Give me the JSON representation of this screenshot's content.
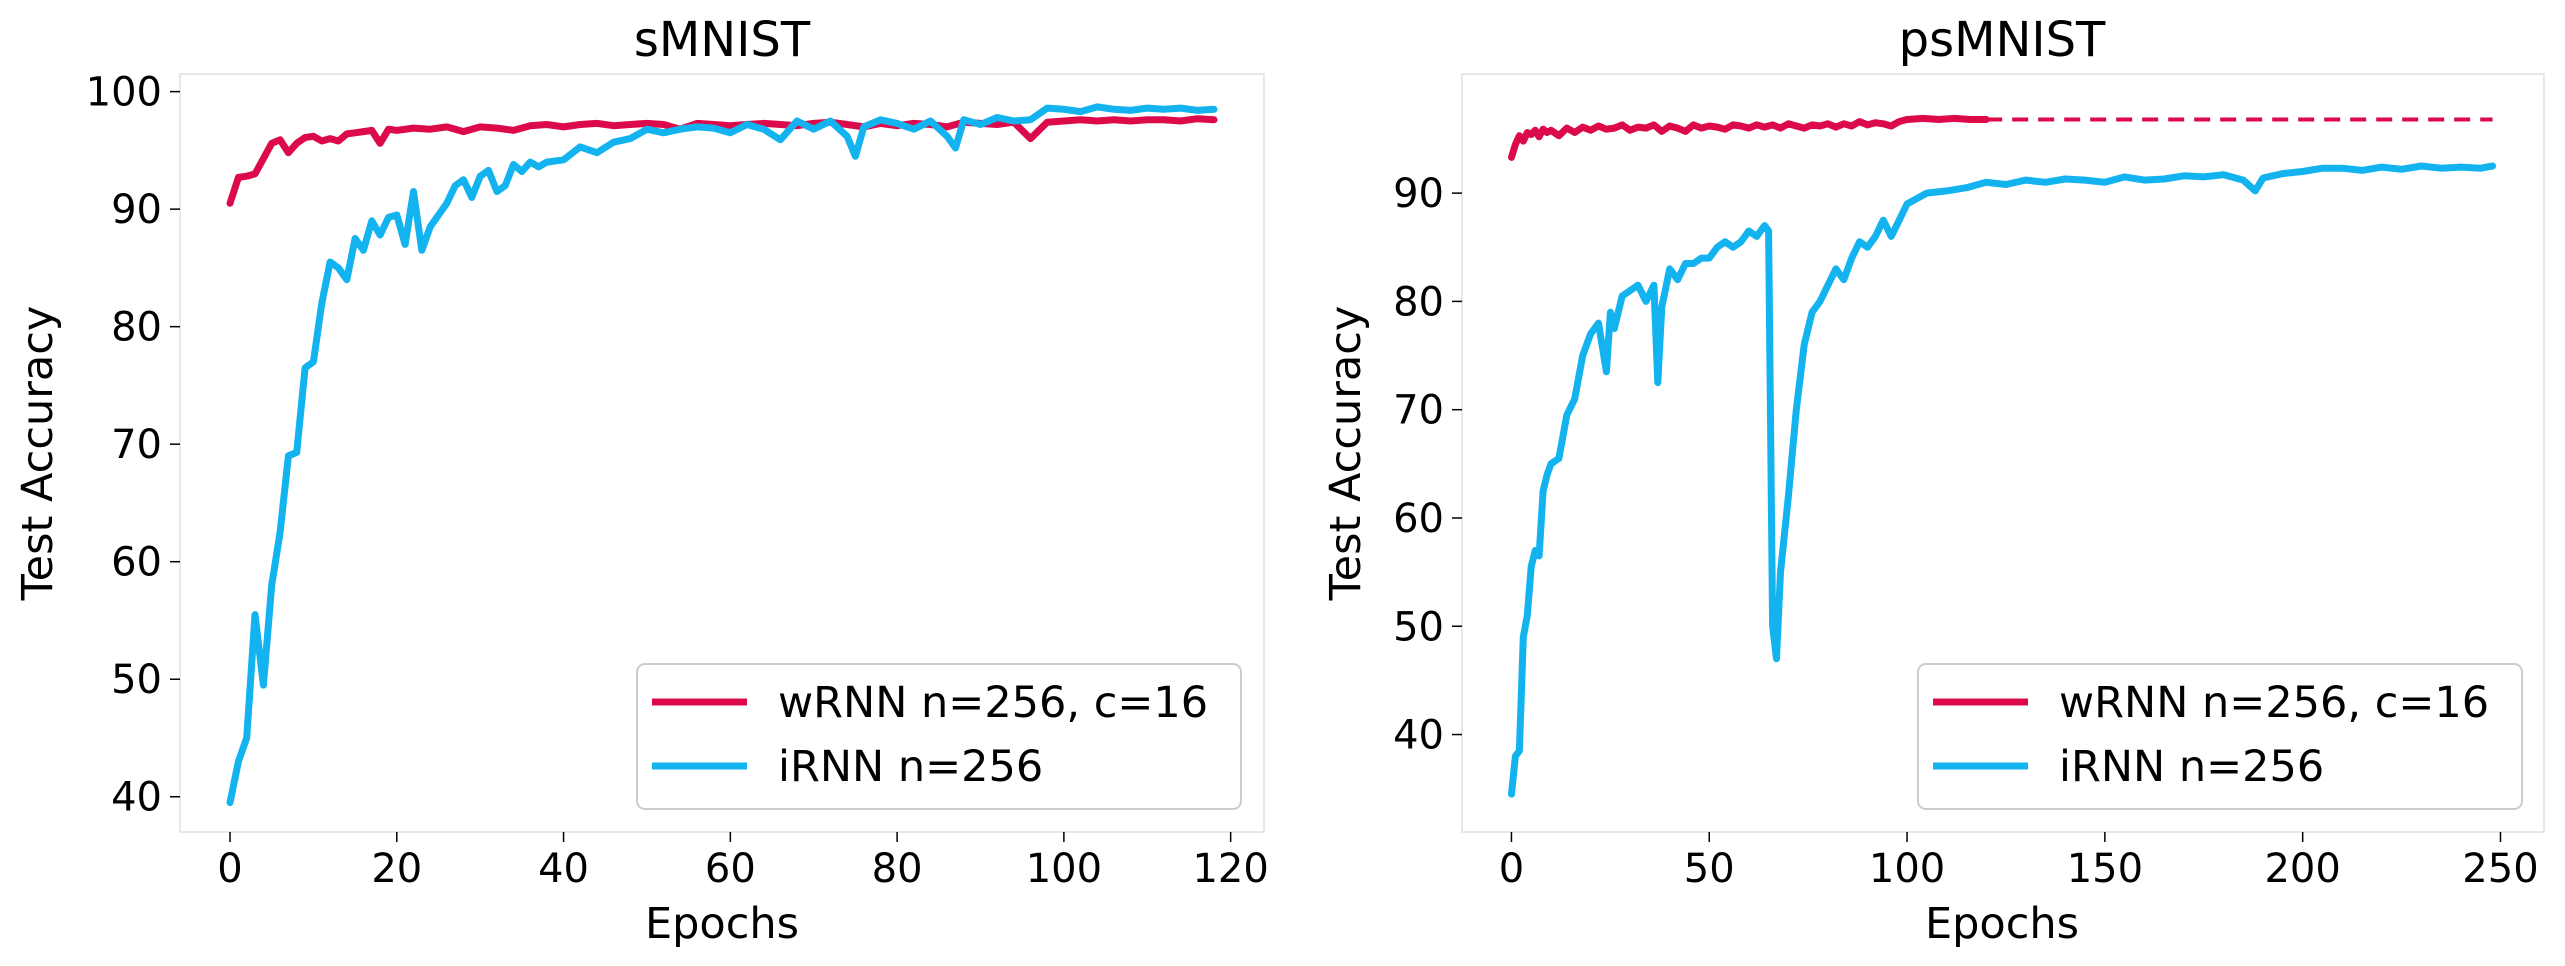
{
  "chart_data": [
    {
      "type": "line",
      "title": "sMNIST",
      "xlabel": "Epochs",
      "ylabel": "Test Accuracy",
      "xlim": [
        -6,
        124
      ],
      "ylim": [
        37,
        101.5
      ],
      "xticks": [
        0,
        20,
        40,
        60,
        80,
        100,
        120
      ],
      "yticks": [
        40,
        50,
        60,
        70,
        80,
        90,
        100
      ],
      "grid": false,
      "legend_position": "lower-right",
      "series": [
        {
          "name": "wRNN n=256, c=16",
          "color": "#dc0a4a",
          "style": "solid",
          "x": [
            0,
            1,
            2,
            3,
            4,
            5,
            6,
            7,
            8,
            9,
            10,
            11,
            12,
            13,
            14,
            15,
            16,
            17,
            18,
            19,
            20,
            22,
            24,
            26,
            28,
            30,
            32,
            34,
            36,
            38,
            40,
            42,
            44,
            46,
            48,
            50,
            52,
            54,
            56,
            58,
            60,
            62,
            64,
            66,
            68,
            70,
            72,
            74,
            76,
            78,
            80,
            82,
            84,
            86,
            88,
            90,
            92,
            94,
            96,
            98,
            100,
            102,
            104,
            106,
            108,
            110,
            112,
            114,
            116,
            118
          ],
          "values": [
            90.5,
            92.7,
            92.8,
            93.0,
            94.3,
            95.6,
            95.9,
            94.8,
            95.6,
            96.1,
            96.2,
            95.8,
            96.0,
            95.8,
            96.4,
            96.5,
            96.6,
            96.7,
            95.6,
            96.8,
            96.7,
            96.9,
            96.8,
            97.0,
            96.6,
            97.0,
            96.9,
            96.7,
            97.1,
            97.2,
            97.0,
            97.2,
            97.3,
            97.1,
            97.2,
            97.3,
            97.2,
            96.8,
            97.3,
            97.2,
            97.1,
            97.2,
            97.3,
            97.2,
            97.1,
            97.3,
            97.4,
            97.2,
            97.0,
            97.3,
            97.1,
            97.3,
            97.2,
            97.0,
            97.4,
            97.3,
            97.2,
            97.4,
            96.0,
            97.4,
            97.5,
            97.6,
            97.5,
            97.6,
            97.5,
            97.6,
            97.6,
            97.5,
            97.7,
            97.6
          ]
        },
        {
          "name": "iRNN n=256",
          "color": "#13b3f0",
          "style": "solid",
          "x": [
            0,
            1,
            2,
            3,
            4,
            5,
            6,
            7,
            8,
            9,
            10,
            11,
            12,
            13,
            14,
            15,
            16,
            17,
            18,
            19,
            20,
            21,
            22,
            23,
            24,
            25,
            26,
            27,
            28,
            29,
            30,
            31,
            32,
            33,
            34,
            35,
            36,
            37,
            38,
            40,
            42,
            44,
            46,
            48,
            50,
            52,
            54,
            56,
            58,
            60,
            62,
            64,
            66,
            68,
            70,
            72,
            74,
            75,
            76,
            78,
            80,
            82,
            84,
            86,
            87,
            88,
            90,
            92,
            94,
            96,
            98,
            100,
            102,
            104,
            106,
            108,
            110,
            112,
            114,
            116,
            118
          ],
          "values": [
            39.5,
            43.0,
            45.0,
            55.5,
            49.5,
            58.0,
            62.5,
            69.0,
            69.3,
            76.5,
            77.0,
            82.0,
            85.5,
            85.0,
            84.0,
            87.5,
            86.5,
            89.0,
            87.8,
            89.3,
            89.5,
            87.0,
            91.5,
            86.5,
            88.5,
            89.5,
            90.5,
            92.0,
            92.5,
            91.0,
            92.8,
            93.3,
            91.5,
            92.0,
            93.8,
            93.2,
            94.0,
            93.6,
            94.0,
            94.2,
            95.3,
            94.8,
            95.7,
            96.0,
            96.8,
            96.5,
            96.8,
            97.0,
            96.9,
            96.5,
            97.2,
            96.8,
            95.9,
            97.5,
            96.8,
            97.5,
            96.2,
            94.5,
            97.0,
            97.6,
            97.3,
            96.8,
            97.5,
            96.2,
            95.2,
            97.6,
            97.2,
            97.8,
            97.5,
            97.6,
            98.6,
            98.5,
            98.3,
            98.7,
            98.5,
            98.4,
            98.6,
            98.5,
            98.6,
            98.4,
            98.5
          ]
        }
      ]
    },
    {
      "type": "line",
      "title": "psMNIST",
      "xlabel": "Epochs",
      "ylabel": "Test Accuracy",
      "xlim": [
        -12.5,
        261
      ],
      "ylim": [
        31,
        101
      ],
      "xticks": [
        0,
        50,
        100,
        150,
        200,
        250
      ],
      "yticks": [
        40,
        50,
        60,
        70,
        80,
        90
      ],
      "grid": false,
      "legend_position": "lower-right",
      "series": [
        {
          "name": "wRNN n=256, c=16",
          "color": "#dc0a4a",
          "style": "solid",
          "x": [
            0,
            1,
            2,
            3,
            4,
            5,
            6,
            7,
            8,
            9,
            10,
            12,
            14,
            16,
            18,
            20,
            22,
            24,
            26,
            28,
            30,
            32,
            34,
            36,
            38,
            40,
            42,
            44,
            46,
            48,
            50,
            52,
            54,
            56,
            58,
            60,
            62,
            64,
            66,
            68,
            70,
            72,
            74,
            76,
            78,
            80,
            82,
            84,
            86,
            88,
            90,
            92,
            94,
            96,
            98,
            100,
            104,
            108,
            112,
            116,
            120
          ],
          "values": [
            93.3,
            94.5,
            95.3,
            94.8,
            95.6,
            95.4,
            95.8,
            95.2,
            95.9,
            95.6,
            95.8,
            95.3,
            96.0,
            95.6,
            96.1,
            95.8,
            96.2,
            95.9,
            96.0,
            96.3,
            95.8,
            96.1,
            96.0,
            96.3,
            95.7,
            96.2,
            96.0,
            95.7,
            96.3,
            96.0,
            96.2,
            96.1,
            95.9,
            96.3,
            96.2,
            96.0,
            96.3,
            96.1,
            96.3,
            96.0,
            96.4,
            96.2,
            96.0,
            96.3,
            96.2,
            96.4,
            96.1,
            96.4,
            96.2,
            96.6,
            96.3,
            96.5,
            96.4,
            96.2,
            96.6,
            96.8,
            96.9,
            96.8,
            96.9,
            96.8,
            96.8
          ]
        },
        {
          "name": "",
          "color": "#dc0a4a",
          "style": "dashed",
          "x": [
            120,
            248
          ],
          "values": [
            96.8,
            96.8
          ]
        },
        {
          "name": "iRNN n=256",
          "color": "#13b3f0",
          "style": "solid",
          "x": [
            0,
            1,
            2,
            3,
            4,
            5,
            6,
            7,
            8,
            9,
            10,
            12,
            14,
            16,
            18,
            20,
            22,
            24,
            25,
            26,
            28,
            30,
            32,
            34,
            36,
            37,
            38,
            40,
            42,
            44,
            46,
            48,
            50,
            52,
            54,
            56,
            58,
            60,
            62,
            64,
            65,
            66,
            67,
            68,
            70,
            72,
            74,
            76,
            78,
            80,
            82,
            84,
            86,
            88,
            90,
            92,
            94,
            96,
            98,
            100,
            105,
            110,
            115,
            120,
            125,
            130,
            135,
            140,
            145,
            150,
            155,
            160,
            165,
            170,
            175,
            180,
            185,
            188,
            190,
            195,
            200,
            205,
            210,
            215,
            220,
            225,
            230,
            235,
            240,
            245,
            248
          ],
          "values": [
            34.5,
            38.0,
            38.5,
            49.0,
            51.0,
            55.5,
            57.0,
            56.5,
            62.5,
            64.0,
            65.0,
            65.5,
            69.5,
            71.0,
            75.0,
            77.0,
            78.0,
            73.5,
            79.0,
            77.5,
            80.5,
            81.0,
            81.5,
            80.0,
            81.5,
            72.5,
            79.5,
            83.0,
            82.0,
            83.5,
            83.5,
            84.0,
            84.0,
            85.0,
            85.5,
            85.0,
            85.5,
            86.5,
            86.0,
            87.0,
            86.5,
            50.0,
            47.0,
            55.0,
            62.0,
            70.0,
            76.0,
            79.0,
            80.0,
            81.5,
            83.0,
            82.0,
            84.0,
            85.5,
            85.0,
            86.0,
            87.5,
            86.0,
            87.5,
            89.0,
            90.0,
            90.2,
            90.5,
            91.0,
            90.8,
            91.2,
            91.0,
            91.3,
            91.2,
            91.0,
            91.5,
            91.2,
            91.3,
            91.6,
            91.5,
            91.7,
            91.2,
            90.2,
            91.4,
            91.8,
            92.0,
            92.3,
            92.3,
            92.1,
            92.4,
            92.2,
            92.5,
            92.3,
            92.4,
            92.3,
            92.5
          ]
        }
      ]
    }
  ]
}
